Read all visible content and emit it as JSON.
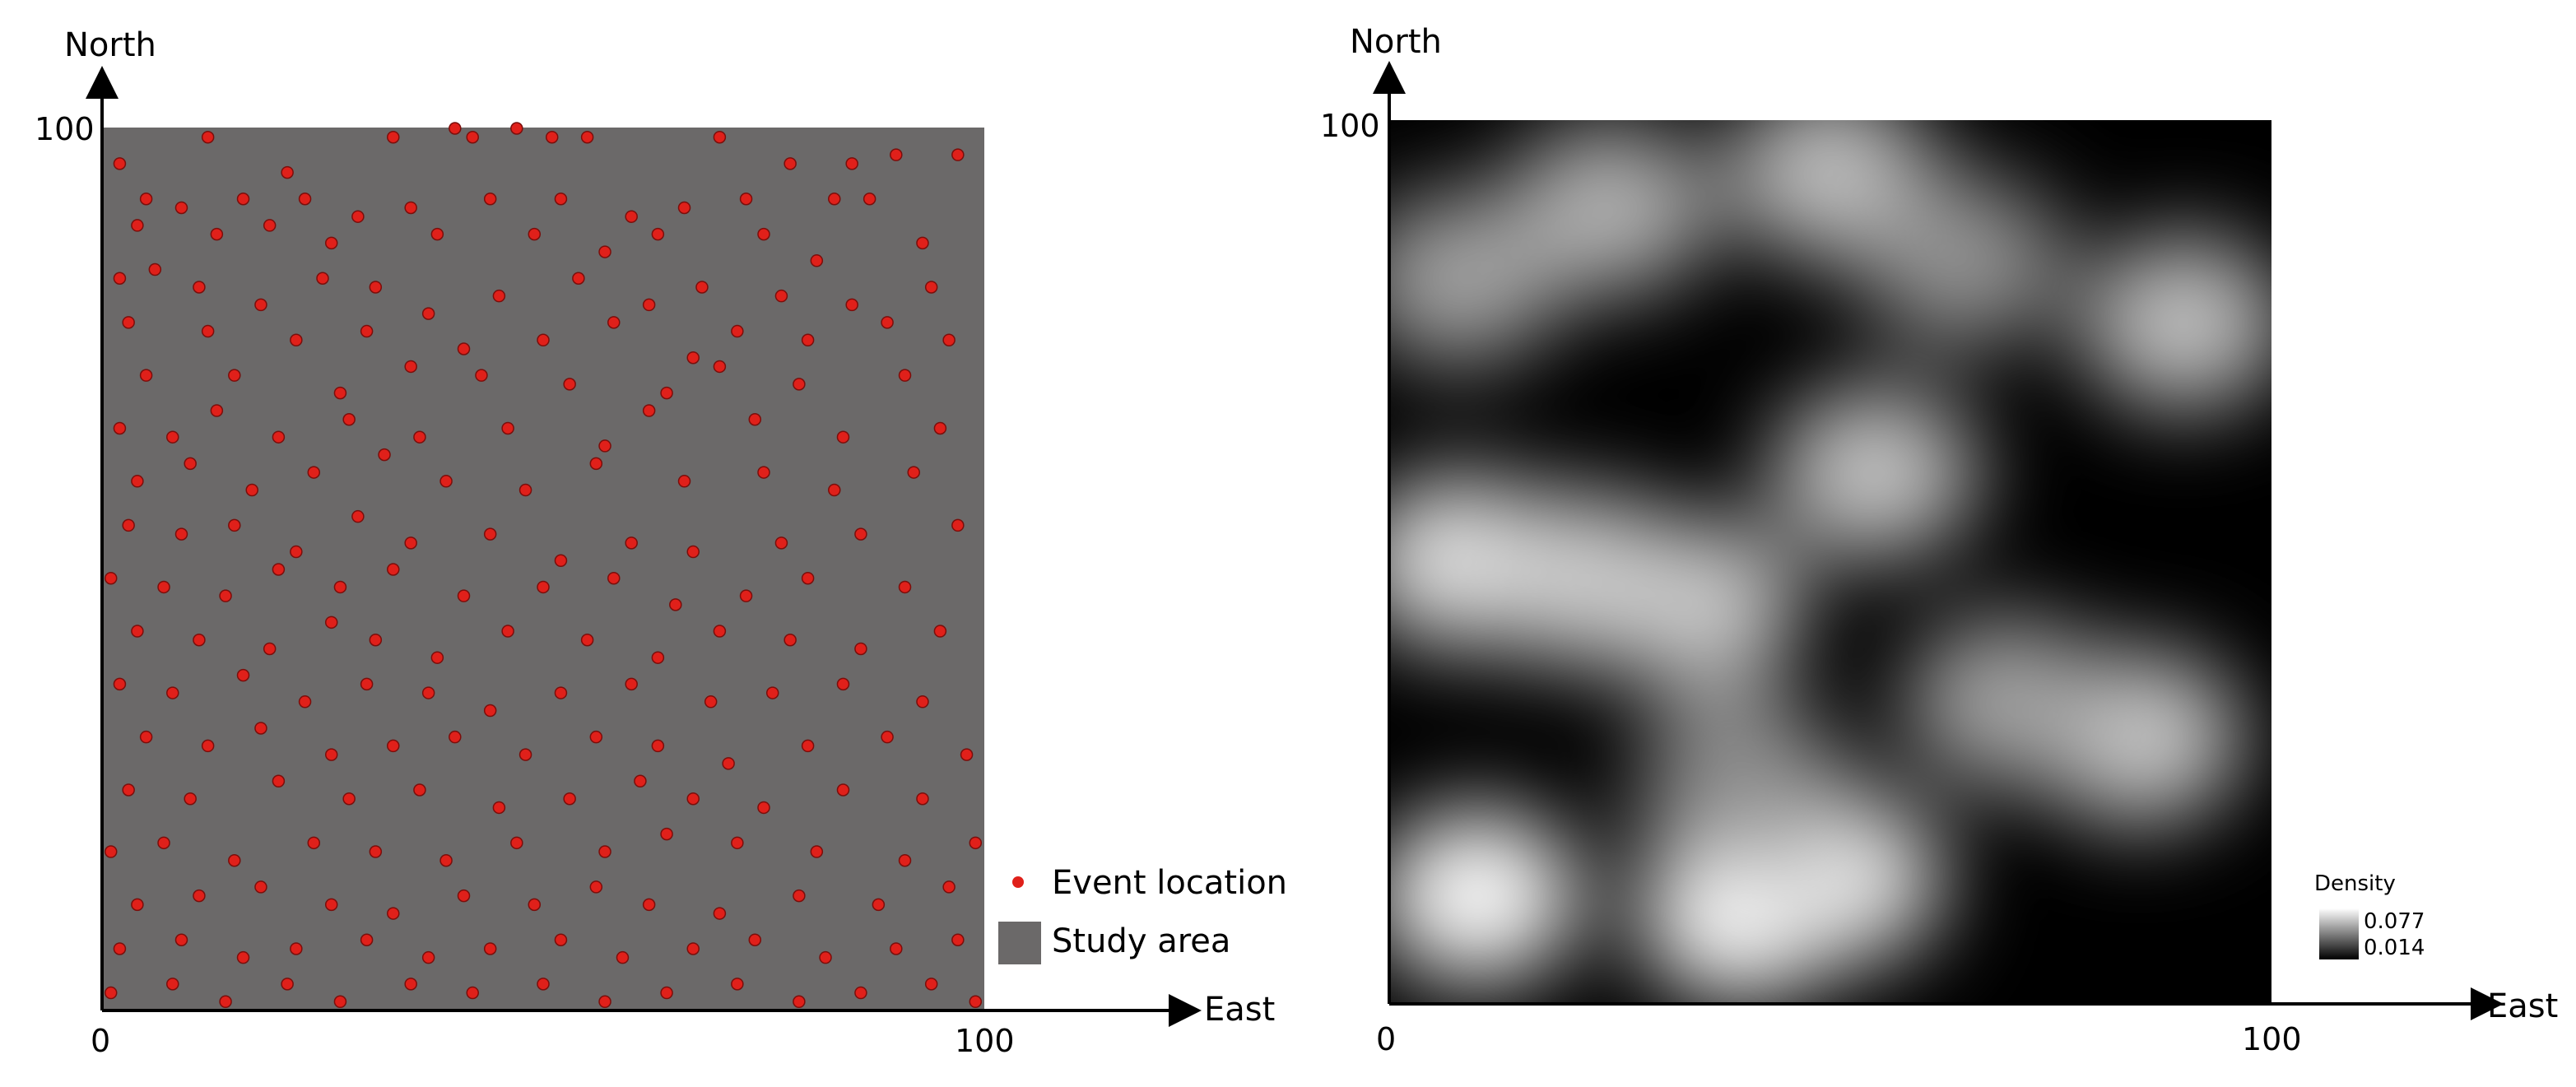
{
  "figure": {
    "left_panel": {
      "y_axis_label": "North",
      "x_axis_label": "East",
      "x_tick_min": "0",
      "x_tick_max": "100",
      "y_tick_max": "100",
      "legend_event": "Event location",
      "legend_area": "Study area"
    },
    "right_panel": {
      "y_axis_label": "North",
      "x_axis_label": "East",
      "x_tick_min": "0",
      "x_tick_max": "100",
      "y_tick_max": "100",
      "density_title": "Density",
      "density_max": "0.077",
      "density_min": "0.014"
    }
  },
  "chart_data": [
    {
      "type": "scatter",
      "title": "",
      "xlabel": "East",
      "ylabel": "North",
      "xlim": [
        0,
        100
      ],
      "ylim": [
        0,
        100
      ],
      "grid": false,
      "legend": [
        "Event location",
        "Study area"
      ],
      "legend_position": "bottom-right",
      "colors": {
        "points": "#e0201a",
        "area": "#6b6969"
      },
      "series": [
        {
          "name": "Event location",
          "points": [
            [
              2,
              96
            ],
            [
              12,
              99
            ],
            [
              21,
              95
            ],
            [
              33,
              99
            ],
            [
              40,
              100
            ],
            [
              42,
              99
            ],
            [
              47,
              100
            ],
            [
              51,
              99
            ],
            [
              55,
              99
            ],
            [
              70,
              99
            ],
            [
              78,
              96
            ],
            [
              85,
              96
            ],
            [
              90,
              97
            ],
            [
              97,
              97
            ],
            [
              5,
              92
            ],
            [
              9,
              91
            ],
            [
              16,
              92
            ],
            [
              23,
              92
            ],
            [
              29,
              90
            ],
            [
              35,
              91
            ],
            [
              44,
              92
            ],
            [
              52,
              92
            ],
            [
              60,
              90
            ],
            [
              66,
              91
            ],
            [
              73,
              92
            ],
            [
              83,
              92
            ],
            [
              87,
              92
            ],
            [
              4,
              89
            ],
            [
              13,
              88
            ],
            [
              19,
              89
            ],
            [
              26,
              87
            ],
            [
              38,
              88
            ],
            [
              49,
              88
            ],
            [
              57,
              86
            ],
            [
              63,
              88
            ],
            [
              75,
              88
            ],
            [
              81,
              85
            ],
            [
              93,
              87
            ],
            [
              2,
              83
            ],
            [
              6,
              84
            ],
            [
              11,
              82
            ],
            [
              18,
              80
            ],
            [
              25,
              83
            ],
            [
              31,
              82
            ],
            [
              37,
              79
            ],
            [
              45,
              81
            ],
            [
              54,
              83
            ],
            [
              62,
              80
            ],
            [
              68,
              82
            ],
            [
              77,
              81
            ],
            [
              85,
              80
            ],
            [
              94,
              82
            ],
            [
              3,
              78
            ],
            [
              12,
              77
            ],
            [
              22,
              76
            ],
            [
              30,
              77
            ],
            [
              41,
              75
            ],
            [
              50,
              76
            ],
            [
              58,
              78
            ],
            [
              67,
              74
            ],
            [
              72,
              77
            ],
            [
              80,
              76
            ],
            [
              89,
              78
            ],
            [
              96,
              76
            ],
            [
              5,
              72
            ],
            [
              15,
              72
            ],
            [
              27,
              70
            ],
            [
              35,
              73
            ],
            [
              43,
              72
            ],
            [
              53,
              71
            ],
            [
              64,
              70
            ],
            [
              70,
              73
            ],
            [
              79,
              71
            ],
            [
              91,
              72
            ],
            [
              2,
              66
            ],
            [
              8,
              65
            ],
            [
              13,
              68
            ],
            [
              20,
              65
            ],
            [
              28,
              67
            ],
            [
              36,
              65
            ],
            [
              46,
              66
            ],
            [
              57,
              64
            ],
            [
              62,
              68
            ],
            [
              74,
              67
            ],
            [
              84,
              65
            ],
            [
              95,
              66
            ],
            [
              4,
              60
            ],
            [
              10,
              62
            ],
            [
              17,
              59
            ],
            [
              24,
              61
            ],
            [
              32,
              63
            ],
            [
              39,
              60
            ],
            [
              48,
              59
            ],
            [
              56,
              62
            ],
            [
              66,
              60
            ],
            [
              75,
              61
            ],
            [
              83,
              59
            ],
            [
              92,
              61
            ],
            [
              3,
              55
            ],
            [
              9,
              54
            ],
            [
              15,
              55
            ],
            [
              22,
              52
            ],
            [
              29,
              56
            ],
            [
              35,
              53
            ],
            [
              44,
              54
            ],
            [
              52,
              51
            ],
            [
              60,
              53
            ],
            [
              67,
              52
            ],
            [
              77,
              53
            ],
            [
              86,
              54
            ],
            [
              97,
              55
            ],
            [
              1,
              49
            ],
            [
              7,
              48
            ],
            [
              14,
              47
            ],
            [
              20,
              50
            ],
            [
              27,
              48
            ],
            [
              33,
              50
            ],
            [
              41,
              47
            ],
            [
              50,
              48
            ],
            [
              58,
              49
            ],
            [
              65,
              46
            ],
            [
              73,
              47
            ],
            [
              80,
              49
            ],
            [
              91,
              48
            ],
            [
              4,
              43
            ],
            [
              11,
              42
            ],
            [
              19,
              41
            ],
            [
              26,
              44
            ],
            [
              31,
              42
            ],
            [
              38,
              40
            ],
            [
              46,
              43
            ],
            [
              55,
              42
            ],
            [
              63,
              40
            ],
            [
              70,
              43
            ],
            [
              78,
              42
            ],
            [
              86,
              41
            ],
            [
              95,
              43
            ],
            [
              2,
              37
            ],
            [
              8,
              36
            ],
            [
              16,
              38
            ],
            [
              23,
              35
            ],
            [
              30,
              37
            ],
            [
              37,
              36
            ],
            [
              44,
              34
            ],
            [
              52,
              36
            ],
            [
              60,
              37
            ],
            [
              69,
              35
            ],
            [
              76,
              36
            ],
            [
              84,
              37
            ],
            [
              93,
              35
            ],
            [
              5,
              31
            ],
            [
              12,
              30
            ],
            [
              18,
              32
            ],
            [
              26,
              29
            ],
            [
              33,
              30
            ],
            [
              40,
              31
            ],
            [
              48,
              29
            ],
            [
              56,
              31
            ],
            [
              63,
              30
            ],
            [
              71,
              28
            ],
            [
              80,
              30
            ],
            [
              89,
              31
            ],
            [
              98,
              29
            ],
            [
              3,
              25
            ],
            [
              10,
              24
            ],
            [
              20,
              26
            ],
            [
              28,
              24
            ],
            [
              36,
              25
            ],
            [
              45,
              23
            ],
            [
              53,
              24
            ],
            [
              61,
              26
            ],
            [
              67,
              24
            ],
            [
              75,
              23
            ],
            [
              84,
              25
            ],
            [
              93,
              24
            ],
            [
              1,
              18
            ],
            [
              7,
              19
            ],
            [
              15,
              17
            ],
            [
              24,
              19
            ],
            [
              31,
              18
            ],
            [
              39,
              17
            ],
            [
              47,
              19
            ],
            [
              57,
              18
            ],
            [
              64,
              20
            ],
            [
              72,
              19
            ],
            [
              81,
              18
            ],
            [
              91,
              17
            ],
            [
              99,
              19
            ],
            [
              4,
              12
            ],
            [
              11,
              13
            ],
            [
              18,
              14
            ],
            [
              26,
              12
            ],
            [
              33,
              11
            ],
            [
              41,
              13
            ],
            [
              49,
              12
            ],
            [
              56,
              14
            ],
            [
              62,
              12
            ],
            [
              70,
              11
            ],
            [
              79,
              13
            ],
            [
              88,
              12
            ],
            [
              96,
              14
            ],
            [
              2,
              7
            ],
            [
              9,
              8
            ],
            [
              16,
              6
            ],
            [
              22,
              7
            ],
            [
              30,
              8
            ],
            [
              37,
              6
            ],
            [
              44,
              7
            ],
            [
              52,
              8
            ],
            [
              59,
              6
            ],
            [
              67,
              7
            ],
            [
              74,
              8
            ],
            [
              82,
              6
            ],
            [
              90,
              7
            ],
            [
              97,
              8
            ],
            [
              1,
              2
            ],
            [
              8,
              3
            ],
            [
              14,
              1
            ],
            [
              21,
              3
            ],
            [
              27,
              1
            ],
            [
              35,
              3
            ],
            [
              42,
              2
            ],
            [
              50,
              3
            ],
            [
              57,
              1
            ],
            [
              64,
              2
            ],
            [
              72,
              3
            ],
            [
              79,
              1
            ],
            [
              86,
              2
            ],
            [
              94,
              3
            ],
            [
              99,
              1
            ]
          ]
        }
      ]
    },
    {
      "type": "heatmap",
      "title": "",
      "xlabel": "East",
      "ylabel": "North",
      "xlim": [
        0,
        100
      ],
      "ylim": [
        0,
        100
      ],
      "grid": false,
      "colorbar": {
        "title": "Density",
        "max": 0.077,
        "min": 0.014,
        "position": "bottom-right"
      },
      "colors": {
        "low": "#000000",
        "high": "#ffffff"
      },
      "hotspots": [
        {
          "x": 10,
          "y": 12,
          "value": 0.075
        },
        {
          "x": 40,
          "y": 10,
          "value": 0.077
        },
        {
          "x": 51,
          "y": 14,
          "value": 0.068
        },
        {
          "x": 8,
          "y": 50,
          "value": 0.066
        },
        {
          "x": 22,
          "y": 48,
          "value": 0.06
        },
        {
          "x": 35,
          "y": 45,
          "value": 0.058
        },
        {
          "x": 55,
          "y": 60,
          "value": 0.056
        },
        {
          "x": 85,
          "y": 30,
          "value": 0.058
        },
        {
          "x": 90,
          "y": 77,
          "value": 0.055
        },
        {
          "x": 50,
          "y": 94,
          "value": 0.055
        },
        {
          "x": 25,
          "y": 90,
          "value": 0.05
        },
        {
          "x": 8,
          "y": 82,
          "value": 0.045
        },
        {
          "x": 65,
          "y": 84,
          "value": 0.04
        },
        {
          "x": 70,
          "y": 34,
          "value": 0.045
        },
        {
          "x": 40,
          "y": 25,
          "value": 0.04
        }
      ]
    }
  ]
}
